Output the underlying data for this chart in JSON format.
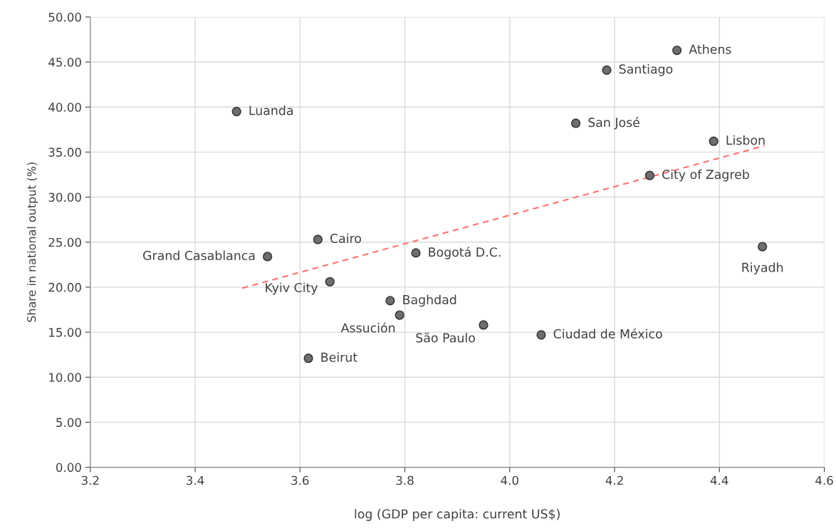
{
  "chart_data": {
    "type": "scatter",
    "xlabel": "log (GDP per capita: current US$)",
    "ylabel": "Share in national output (%)",
    "xlim": [
      3.2,
      4.6
    ],
    "xticks": [
      3.2,
      3.4,
      3.6,
      3.8,
      {
        "value": 4,
        "label": "4.0"
      },
      4.2,
      4.4,
      4.6
    ],
    "ylim": [
      0,
      50
    ],
    "yticks": [
      {
        "value": 0,
        "label": "0.00"
      },
      {
        "value": 5,
        "label": "5.00"
      },
      {
        "value": 10,
        "label": "10.00"
      },
      {
        "value": 15,
        "label": "15.00"
      },
      {
        "value": 20,
        "label": "20.00"
      },
      {
        "value": 25,
        "label": "25.00"
      },
      {
        "value": 30,
        "label": "30.00"
      },
      {
        "value": 35,
        "label": "35.00"
      },
      {
        "value": 40,
        "label": "40.00"
      },
      {
        "value": 45,
        "label": "45.00"
      },
      {
        "value": 50,
        "label": "50.00"
      }
    ],
    "grid": true,
    "marker": "circle",
    "series": [
      {
        "color": "#6e6e6e",
        "x": [
          3.479,
          3.538,
          3.634,
          3.657,
          3.616,
          3.772,
          3.79,
          3.821,
          3.95,
          4.06,
          4.126,
          4.185,
          4.319,
          4.389,
          4.267,
          4.482
        ],
        "values": [
          39.5,
          23.4,
          25.3,
          20.6,
          12.1,
          18.5,
          16.9,
          23.8,
          15.8,
          14.7,
          38.2,
          44.1,
          46.3,
          36.2,
          32.4,
          24.5
        ]
      },
      {
        "type": "line",
        "color": "#ff7070",
        "line_style": "dashed",
        "marker": "none",
        "x": [
          3.49,
          4.486
        ],
        "values": [
          19.9,
          35.7
        ]
      }
    ],
    "annotations": [
      {
        "text": "Luanda",
        "x": 3.479,
        "y": 39.5
      },
      {
        "text": "Grand Casablanca",
        "x": 3.538,
        "y": 23.4
      },
      {
        "text": "Cairo",
        "x": 3.634,
        "y": 25.3
      },
      {
        "text": "Kyiv City",
        "x": 3.657,
        "y": 20.6
      },
      {
        "text": "Beirut",
        "x": 3.616,
        "y": 12.1
      },
      {
        "text": "Baghdad",
        "x": 3.772,
        "y": 18.5
      },
      {
        "text": "Assución",
        "x": 3.79,
        "y": 16.9
      },
      {
        "text": "Bogotá D.C.",
        "x": 3.821,
        "y": 23.8
      },
      {
        "text": "São Paulo",
        "x": 3.95,
        "y": 15.8
      },
      {
        "text": "Ciudad de México",
        "x": 4.06,
        "y": 14.7
      },
      {
        "text": "San José",
        "x": 4.126,
        "y": 38.2
      },
      {
        "text": "Santiago",
        "x": 4.185,
        "y": 44.1
      },
      {
        "text": "Athens",
        "x": 4.319,
        "y": 46.3
      },
      {
        "text": "Lisbon",
        "x": 4.389,
        "y": 36.2
      },
      {
        "text": "City of Zagreb",
        "x": 4.267,
        "y": 32.4
      },
      {
        "text": "Riyadh",
        "x": 4.482,
        "y": 24.5
      }
    ]
  }
}
